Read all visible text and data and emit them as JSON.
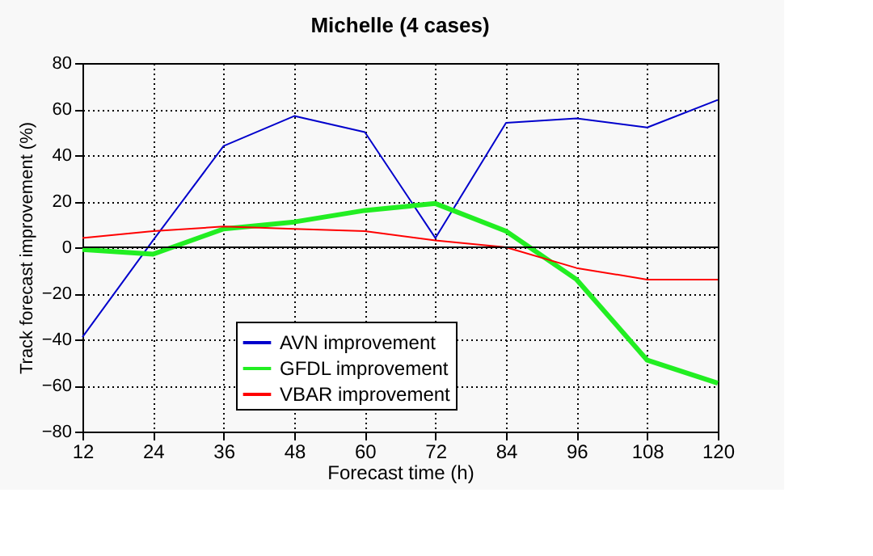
{
  "chart_data": {
    "type": "line",
    "title": "Michelle (4 cases)",
    "xlabel": "Forecast time (h)",
    "ylabel": "Track forecast improvement (%)",
    "x": [
      12,
      24,
      36,
      48,
      60,
      72,
      84,
      96,
      108,
      120
    ],
    "series": [
      {
        "name": "AVN improvement",
        "color": "#0000cc",
        "values": [
          -39,
          3,
          44,
          57,
          50,
          4,
          54,
          56,
          52,
          64
        ]
      },
      {
        "name": "GFDL improvement",
        "color": "#22ee22",
        "values": [
          -1,
          -3,
          8,
          11,
          16,
          19,
          7,
          -14,
          -49,
          -59
        ]
      },
      {
        "name": "VBAR improvement",
        "color": "#ff0000",
        "values": [
          4,
          7,
          9,
          8,
          7,
          3,
          0,
          -9,
          -14,
          -14
        ]
      }
    ],
    "xlim": [
      12,
      120
    ],
    "xticks": [
      12,
      24,
      36,
      48,
      60,
      72,
      84,
      96,
      108,
      120
    ],
    "ylim": [
      -80,
      80
    ],
    "yticks": [
      -80,
      -60,
      -40,
      -20,
      0,
      20,
      40,
      60,
      80
    ],
    "ref_lines": [
      {
        "axis": "y",
        "value": 0,
        "color": "#000000"
      }
    ],
    "grid": true,
    "legend": "bottom",
    "marker": "none",
    "line_style": "solid"
  }
}
